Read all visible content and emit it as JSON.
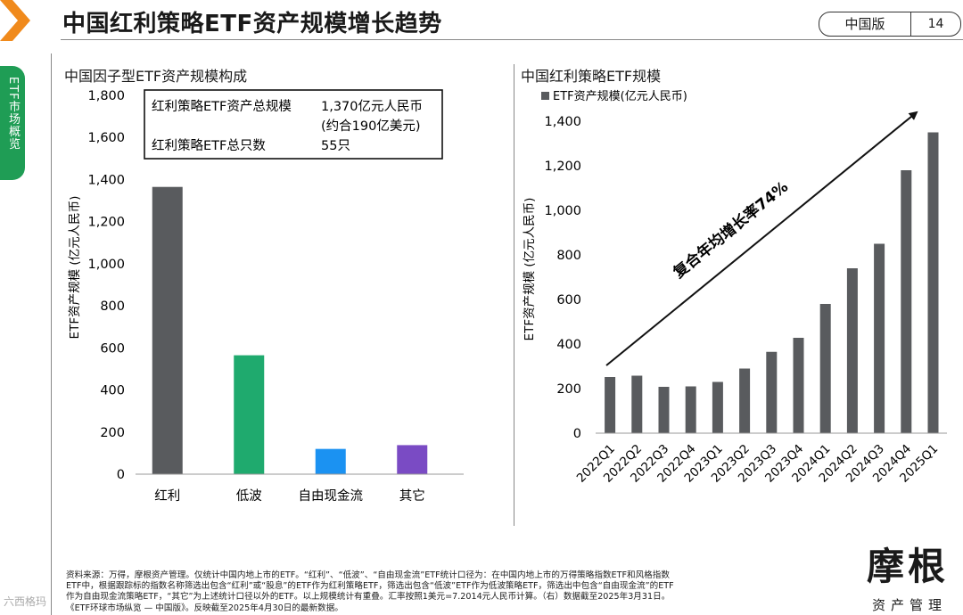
{
  "header": {
    "title": "中国红利策略ETF资产规模增长趋势",
    "edition_label": "中国版",
    "page_number": "14"
  },
  "section_tab": {
    "label": "ETF市场概览"
  },
  "colors": {
    "dividend_bar": "#595b5e",
    "low_vol_bar": "#1faa6e",
    "free_cash_flow_bar": "#1b92f2",
    "other_bar": "#7a4bc4",
    "right_bar": "#595b5e",
    "section_tab": "#1f9d55",
    "logo_orange": "#f08a1c"
  },
  "info_box": {
    "rows": [
      {
        "label": "红利策略ETF资产总规模",
        "value": "1,370亿元人民币",
        "value_sub": "(约合190亿美元)"
      },
      {
        "label": "红利策略ETF总只数",
        "value": "55只"
      }
    ]
  },
  "chart_data": [
    {
      "type": "bar",
      "title": "中国因子型ETF资产规模构成",
      "ylabel": "ETF资产规模 (亿元人民币)",
      "xlabel": "",
      "ylim": [
        0,
        1800
      ],
      "yticks": [
        0,
        200,
        400,
        600,
        800,
        1000,
        1200,
        1400,
        1600,
        1800
      ],
      "ytick_labels": [
        "0",
        "200",
        "400",
        "600",
        "800",
        "1,000",
        "1,200",
        "1,400",
        "1,600",
        "1,800"
      ],
      "categories": [
        "红利",
        "低波",
        "自由现金流",
        "其它"
      ],
      "values": [
        1365,
        565,
        120,
        138
      ],
      "bar_colors": [
        "#595b5e",
        "#1faa6e",
        "#1b92f2",
        "#7a4bc4"
      ],
      "grid": false,
      "legend": "none"
    },
    {
      "type": "bar",
      "title": "中国红利策略ETF规模",
      "legend_label": "ETF资产规模(亿元人民币)",
      "legend": "top-left",
      "ylabel": "ETF资产规模 (亿元人民币)",
      "xlabel": "",
      "ylim": [
        0,
        1400
      ],
      "yticks": [
        0,
        200,
        400,
        600,
        800,
        1000,
        1200,
        1400
      ],
      "ytick_labels": [
        "0",
        "200",
        "400",
        "600",
        "800",
        "1,000",
        "1,200",
        "1,400"
      ],
      "categories": [
        "2022Q1",
        "2022Q2",
        "2022Q3",
        "2022Q4",
        "2023Q1",
        "2023Q2",
        "2023Q3",
        "2023Q4",
        "2024Q1",
        "2024Q2",
        "2024Q3",
        "2024Q4",
        "2025Q1"
      ],
      "values": [
        252,
        258,
        208,
        210,
        230,
        290,
        365,
        428,
        580,
        740,
        850,
        1180,
        1350
      ],
      "annotation": "复合年均增长率74%",
      "grid": false
    }
  ],
  "footnote": {
    "lines": [
      "资料来源：万得，摩根资产管理。仅统计中国内地上市的ETF。“红利”、“低波”、“自由现金流”ETF统计口径为：在中国内地上市的万得策略指数ETF和风格指数",
      "ETF中，根据跟踪标的指数名称筛选出包含“红利”或“股息”的ETF作为红利策略ETF，筛选出包含“低波”ETF作为低波策略ETF，筛选出中包含“自由现金流”的ETF",
      "作为自由现金流策略ETF，“其它”为上述统计口径以外的ETF。以上规模统计有重叠。汇率按照1美元=7.2014元人民币计算。（右）数据截至2025年3月31日。",
      "《ETF环球市场纵览 — 中国版》。反映截至2025年4月30日的最新数据。"
    ]
  },
  "brand": {
    "name": "摩根",
    "sub": "资产管理"
  },
  "watermark": "六西格玛"
}
